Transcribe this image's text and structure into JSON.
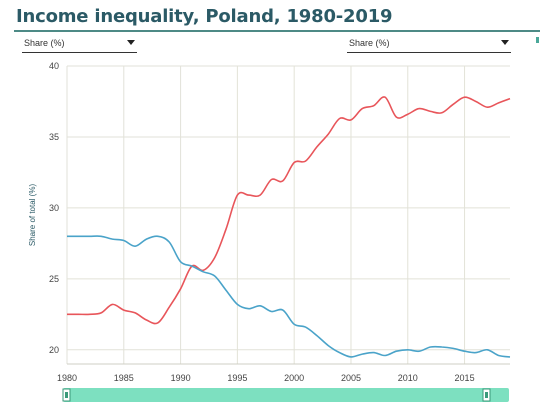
{
  "title": "Income inequality, Poland, 1980-2019",
  "selectors": {
    "left": {
      "value": "Share (%)"
    },
    "right": {
      "value": "Share (%)"
    }
  },
  "colors": {
    "top10": "#e8555a",
    "bottom50": "#4aa3c9",
    "grid": "#e2e2d8",
    "slider": "#7de0c0"
  },
  "chart_data": {
    "type": "line",
    "title": "",
    "xlabel": "",
    "ylabel": "Share of total (%)",
    "xlim": [
      1980,
      2019
    ],
    "ylim": [
      19,
      40
    ],
    "xticks": [
      1980,
      1985,
      1990,
      1995,
      2000,
      2005,
      2010,
      2015
    ],
    "yticks": [
      20,
      25,
      30,
      35,
      40
    ],
    "grid": true,
    "legend": "none",
    "series": [
      {
        "color": "#e8555a",
        "x": [
          1980,
          1981,
          1982,
          1983,
          1984,
          1985,
          1986,
          1987,
          1988,
          1989,
          1990,
          1991,
          1992,
          1993,
          1994,
          1995,
          1996,
          1997,
          1998,
          1999,
          2000,
          2001,
          2002,
          2003,
          2004,
          2005,
          2006,
          2007,
          2008,
          2009,
          2010,
          2011,
          2012,
          2013,
          2014,
          2015,
          2016,
          2017,
          2018,
          2019
        ],
        "values": [
          22.5,
          22.5,
          22.5,
          22.6,
          23.2,
          22.8,
          22.6,
          22.1,
          21.9,
          23.0,
          24.3,
          25.9,
          25.6,
          26.5,
          28.5,
          30.9,
          30.9,
          30.9,
          32.0,
          31.9,
          33.2,
          33.3,
          34.3,
          35.2,
          36.3,
          36.2,
          37.0,
          37.2,
          37.8,
          36.4,
          36.6,
          37.0,
          36.8,
          36.7,
          37.3,
          37.8,
          37.5,
          37.1,
          37.4,
          37.7
        ]
      },
      {
        "color": "#4aa3c9",
        "x": [
          1980,
          1981,
          1982,
          1983,
          1984,
          1985,
          1986,
          1987,
          1988,
          1989,
          1990,
          1991,
          1992,
          1993,
          1994,
          1995,
          1996,
          1997,
          1998,
          1999,
          2000,
          2001,
          2002,
          2003,
          2004,
          2005,
          2006,
          2007,
          2008,
          2009,
          2010,
          2011,
          2012,
          2013,
          2014,
          2015,
          2016,
          2017,
          2018,
          2019
        ],
        "values": [
          28.0,
          28.0,
          28.0,
          28.0,
          27.8,
          27.7,
          27.3,
          27.8,
          28.0,
          27.6,
          26.2,
          25.9,
          25.5,
          25.2,
          24.2,
          23.2,
          22.9,
          23.1,
          22.7,
          22.8,
          21.8,
          21.6,
          21.0,
          20.3,
          19.8,
          19.5,
          19.7,
          19.8,
          19.6,
          19.9,
          20.0,
          19.9,
          20.2,
          20.2,
          20.1,
          19.9,
          19.8,
          20.0,
          19.6,
          19.5
        ]
      }
    ]
  }
}
